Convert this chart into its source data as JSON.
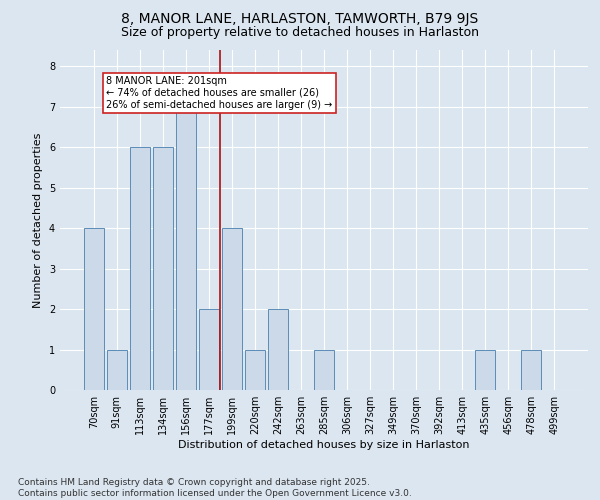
{
  "title": "8, MANOR LANE, HARLASTON, TAMWORTH, B79 9JS",
  "subtitle": "Size of property relative to detached houses in Harlaston",
  "xlabel": "Distribution of detached houses by size in Harlaston",
  "ylabel": "Number of detached properties",
  "categories": [
    "70sqm",
    "91sqm",
    "113sqm",
    "134sqm",
    "156sqm",
    "177sqm",
    "199sqm",
    "220sqm",
    "242sqm",
    "263sqm",
    "285sqm",
    "306sqm",
    "327sqm",
    "349sqm",
    "370sqm",
    "392sqm",
    "413sqm",
    "435sqm",
    "456sqm",
    "478sqm",
    "499sqm"
  ],
  "values": [
    4,
    1,
    6,
    6,
    7,
    2,
    4,
    1,
    2,
    0,
    1,
    0,
    0,
    0,
    0,
    0,
    0,
    1,
    0,
    1,
    0
  ],
  "bar_color": "#ccd9e8",
  "bar_edge_color": "#5b8db8",
  "reference_line_index": 6,
  "annotation_text": "8 MANOR LANE: 201sqm\n← 74% of detached houses are smaller (26)\n26% of semi-detached houses are larger (9) →",
  "annotation_box_color": "#ffffff",
  "annotation_box_edge_color": "#cc2222",
  "ref_line_color": "#aa1111",
  "background_color": "#dce6f0",
  "plot_bg_color": "#dce6f0",
  "grid_color": "#ffffff",
  "ylim": [
    0,
    8.4
  ],
  "yticks": [
    0,
    1,
    2,
    3,
    4,
    5,
    6,
    7,
    8
  ],
  "footer": "Contains HM Land Registry data © Crown copyright and database right 2025.\nContains public sector information licensed under the Open Government Licence v3.0.",
  "title_fontsize": 10,
  "subtitle_fontsize": 9,
  "axis_label_fontsize": 8,
  "tick_fontsize": 7,
  "annotation_fontsize": 7,
  "footer_fontsize": 6.5
}
